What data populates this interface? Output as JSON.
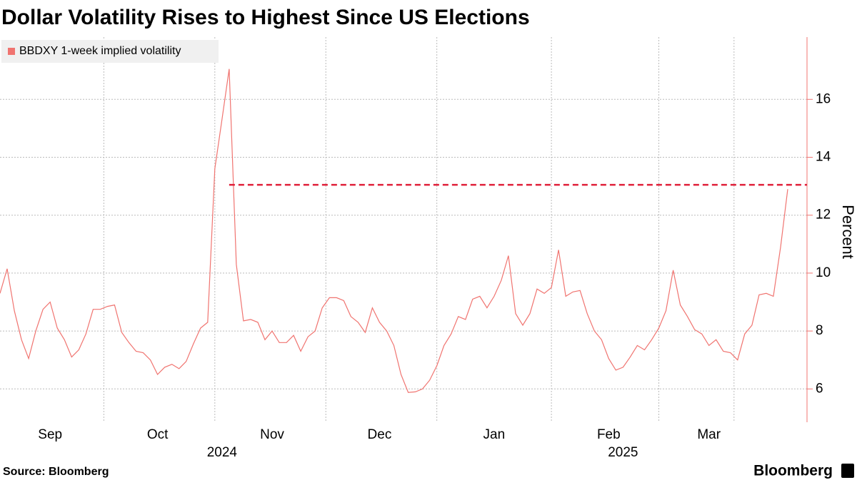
{
  "chart_data": {
    "type": "line",
    "title": "Dollar Volatility Rises to Highest Since US Elections",
    "y_label": "Percent",
    "source": "Source: Bloomberg",
    "brand": "Bloomberg",
    "categories": [
      null,
      null,
      null,
      null,
      null,
      null,
      null,
      "Sep",
      null,
      null,
      null,
      null,
      null,
      null,
      null,
      null,
      null,
      null,
      null,
      null,
      null,
      null,
      "Oct",
      null,
      null,
      null,
      null,
      null,
      null,
      null,
      null,
      null,
      null,
      null,
      null,
      null,
      null,
      null,
      "Nov",
      null,
      null,
      null,
      null,
      null,
      null,
      null,
      null,
      null,
      null,
      null,
      null,
      null,
      null,
      "Dec",
      null,
      null,
      null,
      null,
      null,
      null,
      null,
      null,
      null,
      null,
      null,
      null,
      null,
      null,
      null,
      "Jan",
      null,
      null,
      null,
      null,
      null,
      null,
      null,
      null,
      null,
      null,
      null,
      null,
      null,
      null,
      null,
      "Feb",
      null,
      null,
      null,
      null,
      null,
      null,
      null,
      null,
      null,
      null,
      null,
      null,
      null,
      "Mar",
      null,
      null,
      null,
      null,
      null,
      null,
      null,
      null,
      null,
      null,
      null
    ],
    "years": [
      null,
      null,
      null,
      null,
      null,
      null,
      null,
      null,
      null,
      null,
      null,
      null,
      null,
      null,
      null,
      null,
      null,
      null,
      null,
      null,
      null,
      null,
      null,
      null,
      null,
      null,
      null,
      null,
      null,
      null,
      null,
      "2024",
      null,
      null,
      null,
      null,
      null,
      null,
      null,
      null,
      null,
      null,
      null,
      null,
      null,
      null,
      null,
      null,
      null,
      null,
      null,
      null,
      null,
      null,
      null,
      null,
      null,
      null,
      null,
      null,
      null,
      null,
      null,
      null,
      null,
      null,
      null,
      null,
      null,
      null,
      null,
      null,
      null,
      null,
      null,
      null,
      null,
      null,
      null,
      null,
      null,
      null,
      null,
      null,
      null,
      null,
      null,
      "2025",
      null,
      null,
      null,
      null,
      null,
      null,
      null,
      null,
      null,
      null,
      null,
      null,
      null,
      null,
      null,
      null,
      null,
      null,
      null,
      null,
      null,
      null,
      null
    ],
    "series": [
      {
        "name": "BBDXY 1-week implied volatility",
        "color": "#f07470",
        "values": [
          9.3,
          10.15,
          8.7,
          7.7,
          7.05,
          8.0,
          8.75,
          9.0,
          8.1,
          7.7,
          7.1,
          7.35,
          7.9,
          8.75,
          8.75,
          8.85,
          8.9,
          7.95,
          7.6,
          7.3,
          7.25,
          7.0,
          6.5,
          6.75,
          6.85,
          6.7,
          6.95,
          7.55,
          8.1,
          8.3,
          13.6,
          15.3,
          17.05,
          10.3,
          8.35,
          8.4,
          8.3,
          7.7,
          8.0,
          7.6,
          7.6,
          7.85,
          7.3,
          7.8,
          8.0,
          8.8,
          9.15,
          9.15,
          9.05,
          8.5,
          8.3,
          7.95,
          8.8,
          8.3,
          8.0,
          7.5,
          6.5,
          5.88,
          5.9,
          6.0,
          6.3,
          6.8,
          7.5,
          7.9,
          8.5,
          8.4,
          9.1,
          9.2,
          8.8,
          9.2,
          9.75,
          10.6,
          8.6,
          8.2,
          8.6,
          9.45,
          9.3,
          9.5,
          10.8,
          9.2,
          9.35,
          9.4,
          8.6,
          8.0,
          7.7,
          7.05,
          6.65,
          6.75,
          7.1,
          7.5,
          7.35,
          7.7,
          8.1,
          8.7,
          10.1,
          8.9,
          8.5,
          8.05,
          7.9,
          7.5,
          7.7,
          7.3,
          7.25,
          7.0,
          7.9,
          8.2,
          9.25,
          9.3,
          9.2,
          10.9,
          12.9
        ]
      }
    ],
    "reference_line": {
      "value": 13.05,
      "color": "#e0203a"
    },
    "ylim": [
      4.85,
      18.15
    ],
    "yticks": [
      6,
      8,
      10,
      12,
      14,
      16
    ],
    "grid": true,
    "legend": "top-left"
  }
}
